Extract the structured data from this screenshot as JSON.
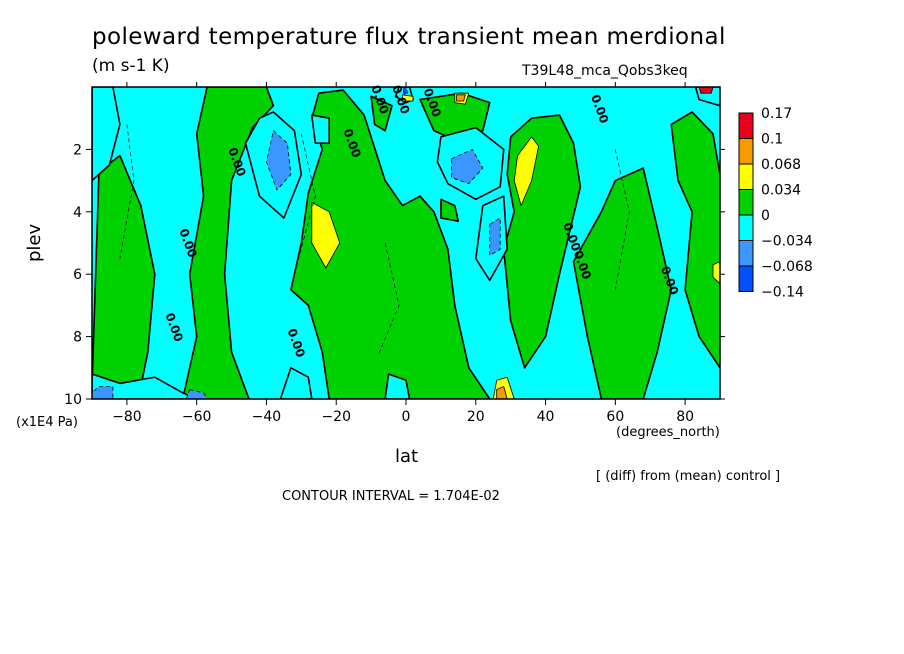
{
  "header": {
    "title": "poleward temperature flux transient mean merdional",
    "units": "(m s-1 K)",
    "run": "T39L48_mca_Qobs3keq"
  },
  "footer": {
    "diff_note": "[ (diff) from (mean) control ]",
    "contour_interval": "CONTOUR INTERVAL = 1.704E-02"
  },
  "chart_data": {
    "type": "heatmap",
    "title": "poleward temperature flux transient mean merdional",
    "subtitle": "(m s-1 K)",
    "xlabel": "lat",
    "ylabel": "plev",
    "x_unit": "(degrees_north)",
    "y_unit": "(x1E4 Pa)",
    "xlim": [
      -90,
      90
    ],
    "ylim": [
      10,
      0
    ],
    "y_inverted": true,
    "x_ticks": [
      -80,
      -60,
      -40,
      -20,
      0,
      20,
      40,
      60,
      80
    ],
    "x_tick_labels": [
      "-80",
      "-60",
      "-40",
      "-20",
      "0",
      "20",
      "40",
      "60",
      "80"
    ],
    "y_ticks": [
      2,
      4,
      6,
      8,
      10
    ],
    "y_tick_labels": [
      "2",
      "4",
      "6",
      "8",
      "10"
    ],
    "contour_levels": [
      -0.14,
      -0.068,
      -0.034,
      0,
      0.034,
      0.068,
      0.1,
      0.17
    ],
    "colorbar": {
      "labels": [
        "0.17",
        "0.1",
        "0.068",
        "0.034",
        "0",
        "−0.034",
        "−0.068",
        "−0.14"
      ],
      "colors": [
        "#e8001c",
        "#f59b00",
        "#ffff00",
        "#00d200",
        "#00ffff",
        "#3c96ff",
        "#0050ff"
      ]
    },
    "contour_labels": [
      "0.00",
      "0.00",
      "0.00",
      "0.00",
      "0.00",
      "0.00",
      "0.00",
      "0.00",
      "0.00",
      "0.00",
      "0.00",
      "0.00"
    ],
    "regions": [
      {
        "level": "neg1",
        "poly": [
          [
            -90,
            0
          ],
          [
            -84,
            0
          ],
          [
            -82,
            1.2
          ],
          [
            -85,
            2.5
          ],
          [
            -90,
            3
          ]
        ]
      },
      {
        "level": "neg1",
        "poly": [
          [
            -90,
            9.2
          ],
          [
            -82,
            9.5
          ],
          [
            -72,
            9.3
          ],
          [
            -64,
            9.8
          ],
          [
            -60,
            10
          ],
          [
            -90,
            10
          ]
        ]
      },
      {
        "level": "neg1",
        "poly": [
          [
            -38,
            0.8
          ],
          [
            -32,
            1.4
          ],
          [
            -30,
            2.8
          ],
          [
            -35,
            4.2
          ],
          [
            -42,
            3.5
          ],
          [
            -46,
            1.8
          ],
          [
            -42,
            1.0
          ]
        ]
      },
      {
        "level": "neg1",
        "poly": [
          [
            -33,
            9.0
          ],
          [
            -28,
            9.3
          ],
          [
            -27,
            10
          ],
          [
            -36,
            10
          ]
        ]
      },
      {
        "level": "neg1",
        "poly": [
          [
            -27,
            0.9
          ],
          [
            -22,
            1.0
          ],
          [
            -22,
            1.8
          ],
          [
            -26,
            1.8
          ]
        ]
      },
      {
        "level": "neg1",
        "poly": [
          [
            -2,
            0
          ],
          [
            1,
            0
          ],
          [
            2,
            0.4
          ],
          [
            0,
            0.5
          ],
          [
            -3,
            0.3
          ]
        ]
      },
      {
        "level": "neg1",
        "poly": [
          [
            10,
            1.6
          ],
          [
            20,
            1.3
          ],
          [
            28,
            2.0
          ],
          [
            27,
            3.2
          ],
          [
            20,
            3.6
          ],
          [
            12,
            3.1
          ],
          [
            9,
            2.4
          ]
        ]
      },
      {
        "level": "neg1",
        "poly": [
          [
            22,
            3.8
          ],
          [
            28,
            3.5
          ],
          [
            29,
            5.2
          ],
          [
            24,
            6.2
          ],
          [
            20,
            5.5
          ]
        ]
      },
      {
        "level": "neg1",
        "poly": [
          [
            -5,
            9.2
          ],
          [
            0,
            9.4
          ],
          [
            1,
            10
          ],
          [
            -6,
            10
          ]
        ]
      },
      {
        "level": "neg1",
        "poly": [
          [
            83,
            0
          ],
          [
            90,
            0
          ],
          [
            90,
            0.6
          ],
          [
            84,
            0.4
          ]
        ]
      },
      {
        "level": "neg2",
        "poly": [
          [
            -38,
            1.4
          ],
          [
            -34,
            1.8
          ],
          [
            -33,
            2.8
          ],
          [
            -37,
            3.3
          ],
          [
            -40,
            2.4
          ]
        ]
      },
      {
        "level": "neg2",
        "poly": [
          [
            -88,
            9.6
          ],
          [
            -84,
            9.6
          ],
          [
            -84,
            10
          ],
          [
            -90,
            10
          ],
          [
            -90,
            9.8
          ]
        ]
      },
      {
        "level": "neg2",
        "poly": [
          [
            13,
            2.3
          ],
          [
            19,
            2.0
          ],
          [
            22,
            2.6
          ],
          [
            18,
            3.1
          ],
          [
            13,
            2.9
          ]
        ]
      },
      {
        "level": "neg2",
        "poly": [
          [
            24,
            4.4
          ],
          [
            27,
            4.2
          ],
          [
            27,
            5.2
          ],
          [
            24,
            5.4
          ]
        ]
      },
      {
        "level": "neg2",
        "poly": [
          [
            -62,
            9.7
          ],
          [
            -58,
            9.8
          ],
          [
            -57,
            10
          ],
          [
            -63,
            10
          ]
        ]
      },
      {
        "level": "neg3",
        "poly": [
          [
            -1,
            0
          ],
          [
            0,
            0
          ],
          [
            0.5,
            0.2
          ],
          [
            -0.5,
            0.25
          ]
        ]
      },
      {
        "level": "pos1",
        "poly": [
          [
            -57,
            0
          ],
          [
            -40,
            0
          ],
          [
            -38,
            0.6
          ],
          [
            -44,
            1.3
          ],
          [
            -50,
            3.0
          ],
          [
            -52,
            6.0
          ],
          [
            -50,
            8.5
          ],
          [
            -45,
            10
          ],
          [
            -64,
            10
          ],
          [
            -60,
            8.0
          ],
          [
            -62,
            6.0
          ],
          [
            -58,
            3.5
          ],
          [
            -60,
            1.5
          ]
        ]
      },
      {
        "level": "pos1",
        "poly": [
          [
            -88,
            2.7
          ],
          [
            -82,
            2.2
          ],
          [
            -76,
            3.8
          ],
          [
            -72,
            6.0
          ],
          [
            -74,
            8.5
          ],
          [
            -76,
            9.6
          ],
          [
            -90,
            9.6
          ]
        ]
      },
      {
        "level": "pos1",
        "poly": [
          [
            -25,
            0.2
          ],
          [
            -18,
            0.1
          ],
          [
            -12,
            0.9
          ],
          [
            -6,
            3.0
          ],
          [
            -1,
            3.8
          ],
          [
            4,
            3.5
          ],
          [
            8,
            4.0
          ],
          [
            12,
            5.2
          ],
          [
            14,
            7.0
          ],
          [
            18,
            9.0
          ],
          [
            24,
            10
          ],
          [
            -22,
            10
          ],
          [
            -24,
            8.5
          ],
          [
            -28,
            7.0
          ],
          [
            -33,
            6.5
          ],
          [
            -30,
            5.0
          ],
          [
            -28,
            3.4
          ],
          [
            -24,
            2.0
          ],
          [
            -27,
            1.0
          ]
        ]
      },
      {
        "level": "pos1",
        "poly": [
          [
            -10,
            0.3
          ],
          [
            -4,
            0.6
          ],
          [
            -6,
            1.4
          ],
          [
            -9,
            1.2
          ]
        ]
      },
      {
        "level": "pos1",
        "poly": [
          [
            4,
            0.4
          ],
          [
            16,
            0.2
          ],
          [
            24,
            0.5
          ],
          [
            22,
            1.4
          ],
          [
            14,
            1.7
          ],
          [
            8,
            1.4
          ]
        ]
      },
      {
        "level": "pos1",
        "poly": [
          [
            30,
            1.6
          ],
          [
            36,
            1.0
          ],
          [
            44,
            0.9
          ],
          [
            48,
            1.8
          ],
          [
            50,
            3.2
          ],
          [
            44,
            6.0
          ],
          [
            40,
            8.0
          ],
          [
            34,
            9.0
          ],
          [
            30,
            7.5
          ],
          [
            28,
            5.2
          ],
          [
            31,
            4.0
          ],
          [
            29,
            2.8
          ]
        ]
      },
      {
        "level": "pos1",
        "poly": [
          [
            48,
            5.6
          ],
          [
            56,
            4.0
          ],
          [
            60,
            3.0
          ],
          [
            68,
            2.6
          ],
          [
            72,
            4.5
          ],
          [
            76,
            6.5
          ],
          [
            72,
            8.5
          ],
          [
            68,
            10
          ],
          [
            56,
            10
          ],
          [
            52,
            8.0
          ]
        ]
      },
      {
        "level": "pos1",
        "poly": [
          [
            76,
            1.2
          ],
          [
            82,
            0.8
          ],
          [
            88,
            1.5
          ],
          [
            90,
            2.8
          ],
          [
            90,
            9.0
          ],
          [
            84,
            8.0
          ],
          [
            80,
            6.5
          ],
          [
            82,
            4.0
          ],
          [
            78,
            3.0
          ]
        ]
      },
      {
        "level": "pos1",
        "poly": [
          [
            10,
            3.6
          ],
          [
            14,
            3.8
          ],
          [
            15,
            4.3
          ],
          [
            10,
            4.2
          ]
        ]
      },
      {
        "level": "pos2",
        "poly": [
          [
            -27,
            3.7
          ],
          [
            -22,
            4.0
          ],
          [
            -19,
            5.0
          ],
          [
            -23,
            5.8
          ],
          [
            -27,
            5.0
          ]
        ]
      },
      {
        "level": "pos2",
        "poly": [
          [
            32,
            2.2
          ],
          [
            36,
            1.6
          ],
          [
            38,
            1.9
          ],
          [
            36,
            3.0
          ],
          [
            33,
            3.8
          ],
          [
            31,
            3.0
          ]
        ]
      },
      {
        "level": "pos2",
        "poly": [
          [
            14,
            0.2
          ],
          [
            18,
            0.2
          ],
          [
            17,
            0.55
          ],
          [
            14,
            0.5
          ]
        ]
      },
      {
        "level": "pos2",
        "poly": [
          [
            26,
            9.4
          ],
          [
            29,
            9.3
          ],
          [
            31,
            10
          ],
          [
            25,
            10
          ]
        ]
      },
      {
        "level": "pos2",
        "poly": [
          [
            88,
            5.7
          ],
          [
            90,
            5.6
          ],
          [
            90,
            6.3
          ],
          [
            88,
            6.1
          ]
        ]
      },
      {
        "level": "pos2",
        "poly": [
          [
            -1,
            0.25
          ],
          [
            2,
            0.3
          ],
          [
            2,
            0.45
          ],
          [
            -1,
            0.45
          ]
        ]
      },
      {
        "level": "pos3",
        "poly": [
          [
            26,
            9.7
          ],
          [
            28,
            9.6
          ],
          [
            29,
            10
          ],
          [
            26,
            10
          ]
        ]
      },
      {
        "level": "pos3",
        "poly": [
          [
            14.5,
            0.25
          ],
          [
            17,
            0.25
          ],
          [
            16.5,
            0.45
          ],
          [
            14.5,
            0.45
          ]
        ]
      },
      {
        "level": "pos4",
        "poly": [
          [
            84,
            0
          ],
          [
            88,
            0
          ],
          [
            87.5,
            0.2
          ],
          [
            84.5,
            0.2
          ]
        ]
      }
    ]
  }
}
